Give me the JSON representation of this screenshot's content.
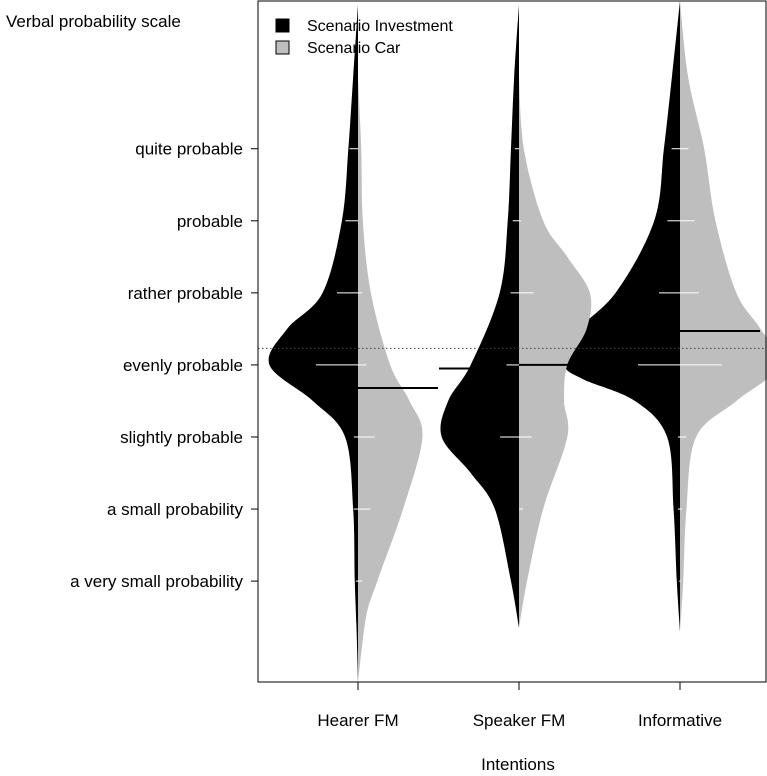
{
  "chart_data": {
    "type": "beanplot",
    "ylabel": "Verbal probability scale",
    "xlabel": "Intentions",
    "categories": [
      "Hearer FM",
      "Speaker FM",
      "Informative"
    ],
    "y_ticks": [
      {
        "value": 1,
        "label": "a very small probability"
      },
      {
        "value": 2,
        "label": "a small probability"
      },
      {
        "value": 3,
        "label": "slightly probable"
      },
      {
        "value": 4,
        "label": "evenly probable"
      },
      {
        "value": 5,
        "label": "rather probable"
      },
      {
        "value": 6,
        "label": "probable"
      },
      {
        "value": 7,
        "label": "quite probable"
      }
    ],
    "ylim": [
      -0.4,
      9.05
    ],
    "overall_mean_line": 4.23,
    "legend_position": "top-left",
    "series": [
      {
        "name": "Scenario Investment",
        "color": "#000000",
        "line_color": "#ffffff",
        "side": "left",
        "means": [
          4.15,
          3.95,
          4.45
        ],
        "beans": [
          {
            "density": [
              [
                -0.4,
                0
              ],
              [
                0.4,
                0.01
              ],
              [
                1.0,
                0.02
              ],
              [
                2.0,
                0.03
              ],
              [
                3.0,
                0.08
              ],
              [
                3.5,
                0.28
              ],
              [
                4.0,
                0.55
              ],
              [
                4.5,
                0.44
              ],
              [
                5.0,
                0.22
              ],
              [
                6.0,
                0.1
              ],
              [
                7.0,
                0.06
              ],
              [
                8.0,
                0.03
              ],
              [
                9.0,
                0
              ]
            ],
            "lines": [
              [
                4,
                1.0
              ],
              [
                5,
                0.5
              ],
              [
                6,
                0.3
              ],
              [
                7,
                0.2
              ],
              [
                3,
                0.1
              ],
              [
                2,
                0.1
              ],
              [
                1,
                0.05
              ]
            ]
          },
          {
            "density": [
              [
                0.35,
                0
              ],
              [
                1.0,
                0.05
              ],
              [
                2.0,
                0.15
              ],
              [
                2.5,
                0.3
              ],
              [
                3.0,
                0.48
              ],
              [
                3.5,
                0.44
              ],
              [
                4.0,
                0.3
              ],
              [
                5.0,
                0.12
              ],
              [
                6.0,
                0.07
              ],
              [
                7.0,
                0.05
              ],
              [
                8.0,
                0.03
              ],
              [
                9.0,
                0
              ]
            ],
            "lines": [
              [
                3,
                0.45
              ],
              [
                4,
                0.3
              ],
              [
                6,
                0.15
              ],
              [
                7,
                0.1
              ],
              [
                5,
                0.2
              ]
            ]
          },
          {
            "density": [
              [
                0.3,
                0
              ],
              [
                1.0,
                0.02
              ],
              [
                2.0,
                0.04
              ],
              [
                3.0,
                0.08
              ],
              [
                3.5,
                0.28
              ],
              [
                3.8,
                0.6
              ],
              [
                4.0,
                0.72
              ],
              [
                4.4,
                0.68
              ],
              [
                5.0,
                0.4
              ],
              [
                6.0,
                0.16
              ],
              [
                7.0,
                0.1
              ],
              [
                8.0,
                0.05
              ],
              [
                9.05,
                0
              ]
            ],
            "lines": [
              [
                4,
                1.0
              ],
              [
                5,
                0.5
              ],
              [
                6,
                0.3
              ],
              [
                7,
                0.2
              ],
              [
                3,
                0.05
              ],
              [
                2,
                0.05
              ],
              [
                1,
                0.02
              ]
            ]
          }
        ]
      },
      {
        "name": "Scenario Car",
        "color": "#bebebe",
        "line_color": "#ffffff",
        "side": "right",
        "means": [
          3.68,
          4.0,
          4.47
        ],
        "beans": [
          {
            "density": [
              [
                -0.4,
                0
              ],
              [
                0.5,
                0.05
              ],
              [
                1.0,
                0.12
              ],
              [
                2.0,
                0.28
              ],
              [
                3.0,
                0.4
              ],
              [
                3.5,
                0.32
              ],
              [
                4.0,
                0.2
              ],
              [
                5.0,
                0.08
              ],
              [
                6.0,
                0.03
              ],
              [
                7.0,
                0.02
              ],
              [
                8.0,
                0
              ]
            ],
            "lines": [
              [
                3,
                0.4
              ],
              [
                2,
                0.3
              ],
              [
                4,
                0.2
              ],
              [
                1,
                0.1
              ],
              [
                5,
                0.1
              ]
            ]
          },
          {
            "density": [
              [
                0.35,
                0
              ],
              [
                1.0,
                0.05
              ],
              [
                2.0,
                0.15
              ],
              [
                3.0,
                0.3
              ],
              [
                3.5,
                0.28
              ],
              [
                4.0,
                0.3
              ],
              [
                4.5,
                0.42
              ],
              [
                5.0,
                0.44
              ],
              [
                5.5,
                0.3
              ],
              [
                6.0,
                0.15
              ],
              [
                7.0,
                0.03
              ],
              [
                8.0,
                0
              ]
            ],
            "lines": [
              [
                5,
                0.35
              ],
              [
                3,
                0.3
              ],
              [
                4,
                0.2
              ],
              [
                2,
                0.1
              ],
              [
                6,
                0.05
              ]
            ]
          },
          {
            "density": [
              [
                0.3,
                0
              ],
              [
                1.0,
                0.02
              ],
              [
                2.0,
                0.04
              ],
              [
                3.0,
                0.1
              ],
              [
                3.5,
                0.35
              ],
              [
                4.0,
                0.62
              ],
              [
                4.5,
                0.5
              ],
              [
                5.0,
                0.35
              ],
              [
                6.0,
                0.22
              ],
              [
                7.0,
                0.15
              ],
              [
                8.0,
                0.05
              ],
              [
                9.05,
                0
              ]
            ],
            "lines": [
              [
                4,
                1.0
              ],
              [
                5,
                0.45
              ],
              [
                6,
                0.35
              ],
              [
                7,
                0.2
              ],
              [
                3,
                0.15
              ],
              [
                2,
                0.05
              ],
              [
                1,
                0.02
              ]
            ]
          }
        ]
      }
    ]
  }
}
